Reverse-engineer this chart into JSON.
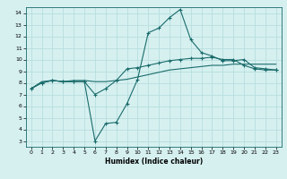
{
  "xlabel": "Humidex (Indice chaleur)",
  "background_color": "#d6f0f0",
  "grid_color": "#b8dede",
  "line_color": "#1a6b6b",
  "xlim": [
    -0.5,
    23.5
  ],
  "ylim": [
    2.5,
    14.5
  ],
  "xticks": [
    0,
    1,
    2,
    3,
    4,
    5,
    6,
    7,
    8,
    9,
    10,
    11,
    12,
    13,
    14,
    15,
    16,
    17,
    18,
    19,
    20,
    21,
    22,
    23
  ],
  "yticks": [
    3,
    4,
    5,
    6,
    7,
    8,
    9,
    10,
    11,
    12,
    13,
    14
  ],
  "line1_x": [
    0,
    1,
    2,
    3,
    4,
    5,
    6,
    7,
    8,
    9,
    10,
    11,
    12,
    13,
    14,
    15,
    16,
    17,
    18,
    19,
    20,
    21,
    22,
    23
  ],
  "line1_y": [
    7.5,
    8.0,
    8.2,
    8.1,
    8.1,
    8.1,
    7.0,
    7.5,
    8.2,
    9.2,
    9.3,
    9.5,
    9.7,
    9.9,
    10.0,
    10.1,
    10.1,
    10.2,
    10.0,
    10.0,
    9.5,
    9.2,
    9.1,
    9.1
  ],
  "line2_x": [
    0,
    1,
    2,
    3,
    4,
    5,
    6,
    7,
    8,
    9,
    10,
    11,
    12,
    13,
    14,
    15,
    16,
    17,
    18,
    19,
    20,
    21,
    22,
    23
  ],
  "line2_y": [
    7.5,
    8.0,
    8.2,
    8.1,
    8.1,
    8.1,
    3.0,
    4.5,
    4.6,
    6.2,
    8.3,
    12.3,
    12.7,
    13.6,
    14.3,
    11.7,
    10.6,
    10.3,
    9.9,
    9.9,
    10.0,
    9.3,
    9.2,
    9.1
  ],
  "line3_x": [
    0,
    1,
    2,
    3,
    4,
    5,
    6,
    7,
    8,
    9,
    10,
    11,
    12,
    13,
    14,
    15,
    16,
    17,
    18,
    19,
    20,
    21,
    22,
    23
  ],
  "line3_y": [
    7.5,
    8.1,
    8.2,
    8.1,
    8.2,
    8.2,
    8.1,
    8.1,
    8.2,
    8.3,
    8.5,
    8.7,
    8.9,
    9.1,
    9.2,
    9.3,
    9.4,
    9.5,
    9.5,
    9.6,
    9.6,
    9.6,
    9.6,
    9.6
  ],
  "xlabel_fontsize": 5.5,
  "tick_fontsize": 4.5
}
